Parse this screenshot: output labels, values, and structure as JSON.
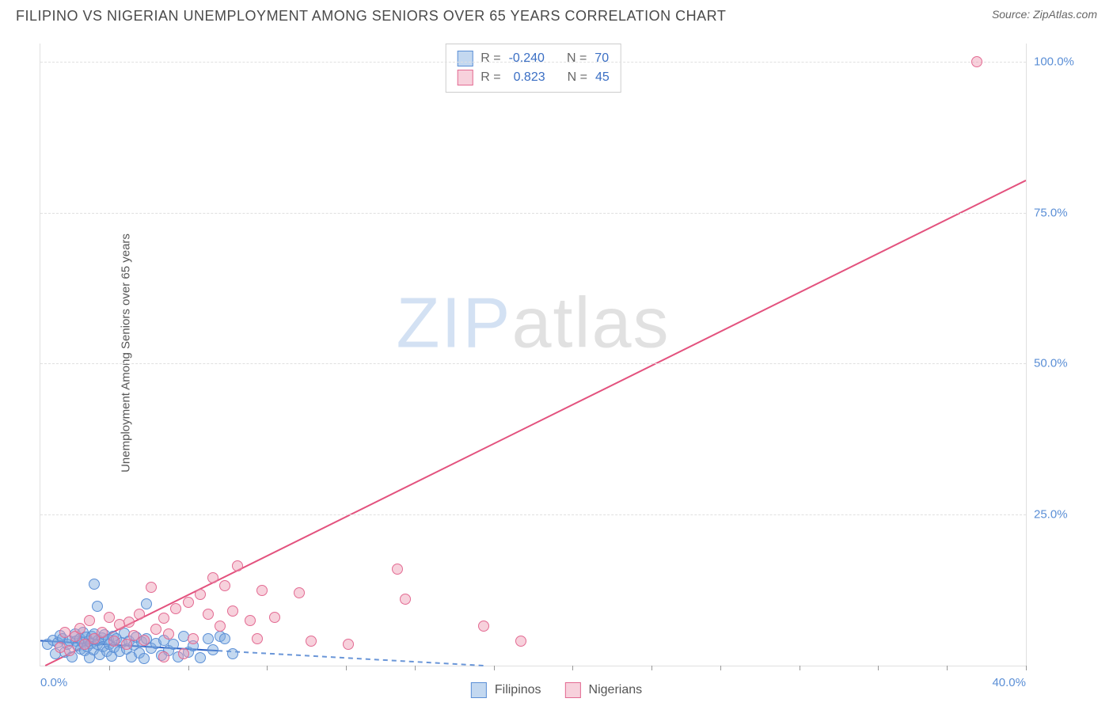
{
  "title": "FILIPINO VS NIGERIAN UNEMPLOYMENT AMONG SENIORS OVER 65 YEARS CORRELATION CHART",
  "source_label": "Source: ZipAtlas.com",
  "y_axis_label": "Unemployment Among Seniors over 65 years",
  "watermark": {
    "zip": "ZIP",
    "atlas": "atlas"
  },
  "chart": {
    "type": "scatter",
    "background_color": "#ffffff",
    "grid_color": "#e0e0e0",
    "tick_label_color": "#5b8fd6",
    "xlim": [
      0,
      40
    ],
    "ylim": [
      0,
      103
    ],
    "x_ticks": [
      0,
      40
    ],
    "x_tick_labels": [
      "0.0%",
      "40.0%"
    ],
    "x_minor_tick_positions_pct": [
      7,
      15,
      23,
      31,
      38,
      46,
      54,
      62,
      69,
      77,
      85,
      92,
      100
    ],
    "y_ticks": [
      25,
      50,
      75,
      100
    ],
    "y_tick_labels": [
      "25.0%",
      "50.0%",
      "75.0%",
      "100.0%"
    ],
    "series": [
      {
        "name": "Filipinos",
        "fill_color": "rgba(123, 168, 222, 0.45)",
        "stroke_color": "#5b8fd6",
        "swatch_fill": "rgba(123, 168, 222, 0.45)",
        "swatch_stroke": "#5b8fd6",
        "marker_size": 14,
        "stats": {
          "R_label": "R =",
          "R": "-0.240",
          "N_label": "N =",
          "N": "70"
        },
        "regression": {
          "x1_pct": 0,
          "y1_pct": 4.0,
          "x2_pct": 45,
          "y2_pct": 0.0,
          "solid_until_x_pct": 18,
          "solid_color": "#2a5fc4",
          "dash_color": "#6a96d8",
          "width": 2,
          "dash": "6,5"
        },
        "points": [
          {
            "x": 0.3,
            "y": 3.5
          },
          {
            "x": 0.5,
            "y": 4.2
          },
          {
            "x": 0.6,
            "y": 2.0
          },
          {
            "x": 0.7,
            "y": 3.8
          },
          {
            "x": 0.8,
            "y": 5.0
          },
          {
            "x": 0.9,
            "y": 4.4
          },
          {
            "x": 1.0,
            "y": 2.2
          },
          {
            "x": 1.1,
            "y": 3.6
          },
          {
            "x": 1.2,
            "y": 4.1
          },
          {
            "x": 1.3,
            "y": 1.5
          },
          {
            "x": 1.4,
            "y": 5.2
          },
          {
            "x": 1.45,
            "y": 4.0
          },
          {
            "x": 1.5,
            "y": 3.3
          },
          {
            "x": 1.6,
            "y": 4.5
          },
          {
            "x": 1.65,
            "y": 2.8
          },
          {
            "x": 1.7,
            "y": 3.9
          },
          {
            "x": 1.75,
            "y": 5.5
          },
          {
            "x": 1.8,
            "y": 2.5
          },
          {
            "x": 1.85,
            "y": 4.7
          },
          {
            "x": 1.9,
            "y": 3.2
          },
          {
            "x": 1.95,
            "y": 4.0
          },
          {
            "x": 2.0,
            "y": 1.3
          },
          {
            "x": 2.05,
            "y": 3.7
          },
          {
            "x": 2.1,
            "y": 4.8
          },
          {
            "x": 2.15,
            "y": 2.6
          },
          {
            "x": 2.2,
            "y": 5.3
          },
          {
            "x": 2.3,
            "y": 3.5
          },
          {
            "x": 2.35,
            "y": 4.2
          },
          {
            "x": 2.4,
            "y": 1.8
          },
          {
            "x": 2.5,
            "y": 4.6
          },
          {
            "x": 2.55,
            "y": 3.1
          },
          {
            "x": 2.6,
            "y": 5.1
          },
          {
            "x": 2.7,
            "y": 2.4
          },
          {
            "x": 2.75,
            "y": 4.3
          },
          {
            "x": 2.8,
            "y": 3.6
          },
          {
            "x": 2.9,
            "y": 1.6
          },
          {
            "x": 2.95,
            "y": 4.9
          },
          {
            "x": 3.0,
            "y": 3.0
          },
          {
            "x": 3.1,
            "y": 4.4
          },
          {
            "x": 3.2,
            "y": 2.3
          },
          {
            "x": 2.2,
            "y": 13.5
          },
          {
            "x": 2.3,
            "y": 9.8
          },
          {
            "x": 3.3,
            "y": 3.8
          },
          {
            "x": 3.4,
            "y": 5.4
          },
          {
            "x": 3.5,
            "y": 2.7
          },
          {
            "x": 3.6,
            "y": 4.1
          },
          {
            "x": 3.7,
            "y": 1.4
          },
          {
            "x": 3.8,
            "y": 3.4
          },
          {
            "x": 3.9,
            "y": 4.7
          },
          {
            "x": 4.0,
            "y": 2.1
          },
          {
            "x": 4.1,
            "y": 3.9
          },
          {
            "x": 4.2,
            "y": 1.2
          },
          {
            "x": 4.3,
            "y": 4.5
          },
          {
            "x": 4.5,
            "y": 2.9
          },
          {
            "x": 4.7,
            "y": 3.7
          },
          {
            "x": 4.9,
            "y": 1.7
          },
          {
            "x": 4.3,
            "y": 10.2
          },
          {
            "x": 5.0,
            "y": 4.2
          },
          {
            "x": 5.2,
            "y": 2.5
          },
          {
            "x": 5.4,
            "y": 3.6
          },
          {
            "x": 5.6,
            "y": 1.5
          },
          {
            "x": 5.8,
            "y": 4.8
          },
          {
            "x": 6.0,
            "y": 2.2
          },
          {
            "x": 6.2,
            "y": 3.3
          },
          {
            "x": 6.5,
            "y": 1.3
          },
          {
            "x": 6.8,
            "y": 4.4
          },
          {
            "x": 7.0,
            "y": 2.6
          },
          {
            "x": 7.3,
            "y": 4.8
          },
          {
            "x": 7.5,
            "y": 4.5
          },
          {
            "x": 7.8,
            "y": 2.0
          }
        ]
      },
      {
        "name": "Nigerians",
        "fill_color": "rgba(238, 154, 178, 0.45)",
        "stroke_color": "#e36a92",
        "swatch_fill": "rgba(238, 154, 178, 0.45)",
        "swatch_stroke": "#e36a92",
        "marker_size": 14,
        "stats": {
          "R_label": "R =",
          "R": "0.823",
          "N_label": "N =",
          "N": "45"
        },
        "regression": {
          "x1_pct": 0.5,
          "y1_pct": 0,
          "x2_pct": 100,
          "y2_pct": 78,
          "solid_until_x_pct": 100,
          "solid_color": "#e3527e",
          "dash_color": "#e889a8",
          "width": 2,
          "dash": "none"
        },
        "points": [
          {
            "x": 0.8,
            "y": 3.0
          },
          {
            "x": 1.0,
            "y": 5.5
          },
          {
            "x": 1.2,
            "y": 2.5
          },
          {
            "x": 1.4,
            "y": 4.8
          },
          {
            "x": 1.6,
            "y": 6.2
          },
          {
            "x": 1.8,
            "y": 3.5
          },
          {
            "x": 2.0,
            "y": 7.5
          },
          {
            "x": 2.2,
            "y": 4.5
          },
          {
            "x": 2.5,
            "y": 5.5
          },
          {
            "x": 2.8,
            "y": 8.0
          },
          {
            "x": 3.0,
            "y": 4.0
          },
          {
            "x": 3.2,
            "y": 6.8
          },
          {
            "x": 3.5,
            "y": 3.5
          },
          {
            "x": 3.6,
            "y": 7.2
          },
          {
            "x": 3.8,
            "y": 5.0
          },
          {
            "x": 4.0,
            "y": 8.5
          },
          {
            "x": 4.2,
            "y": 4.2
          },
          {
            "x": 4.5,
            "y": 13.0
          },
          {
            "x": 4.7,
            "y": 6.0
          },
          {
            "x": 5.0,
            "y": 7.8
          },
          {
            "x": 5.5,
            "y": 9.5
          },
          {
            "x": 5.2,
            "y": 5.2
          },
          {
            "x": 5.8,
            "y": 2.0
          },
          {
            "x": 6.0,
            "y": 10.5
          },
          {
            "x": 6.5,
            "y": 11.8
          },
          {
            "x": 6.2,
            "y": 4.5
          },
          {
            "x": 6.8,
            "y": 8.5
          },
          {
            "x": 7.0,
            "y": 14.5
          },
          {
            "x": 7.3,
            "y": 6.5
          },
          {
            "x": 7.5,
            "y": 13.2
          },
          {
            "x": 8.0,
            "y": 16.5
          },
          {
            "x": 7.8,
            "y": 9.0
          },
          {
            "x": 8.5,
            "y": 7.5
          },
          {
            "x": 9.0,
            "y": 12.5
          },
          {
            "x": 8.8,
            "y": 4.5
          },
          {
            "x": 9.5,
            "y": 8.0
          },
          {
            "x": 10.5,
            "y": 12.0
          },
          {
            "x": 11.0,
            "y": 4.0
          },
          {
            "x": 12.5,
            "y": 3.5
          },
          {
            "x": 14.5,
            "y": 16.0
          },
          {
            "x": 14.8,
            "y": 11.0
          },
          {
            "x": 18.0,
            "y": 6.5
          },
          {
            "x": 19.5,
            "y": 4.0
          },
          {
            "x": 38.0,
            "y": 100.0
          },
          {
            "x": 5.0,
            "y": 1.5
          }
        ]
      }
    ]
  },
  "bottom_legend": [
    {
      "label": "Filipinos",
      "fill": "rgba(123, 168, 222, 0.45)",
      "stroke": "#5b8fd6"
    },
    {
      "label": "Nigerians",
      "fill": "rgba(238, 154, 178, 0.45)",
      "stroke": "#e36a92"
    }
  ]
}
